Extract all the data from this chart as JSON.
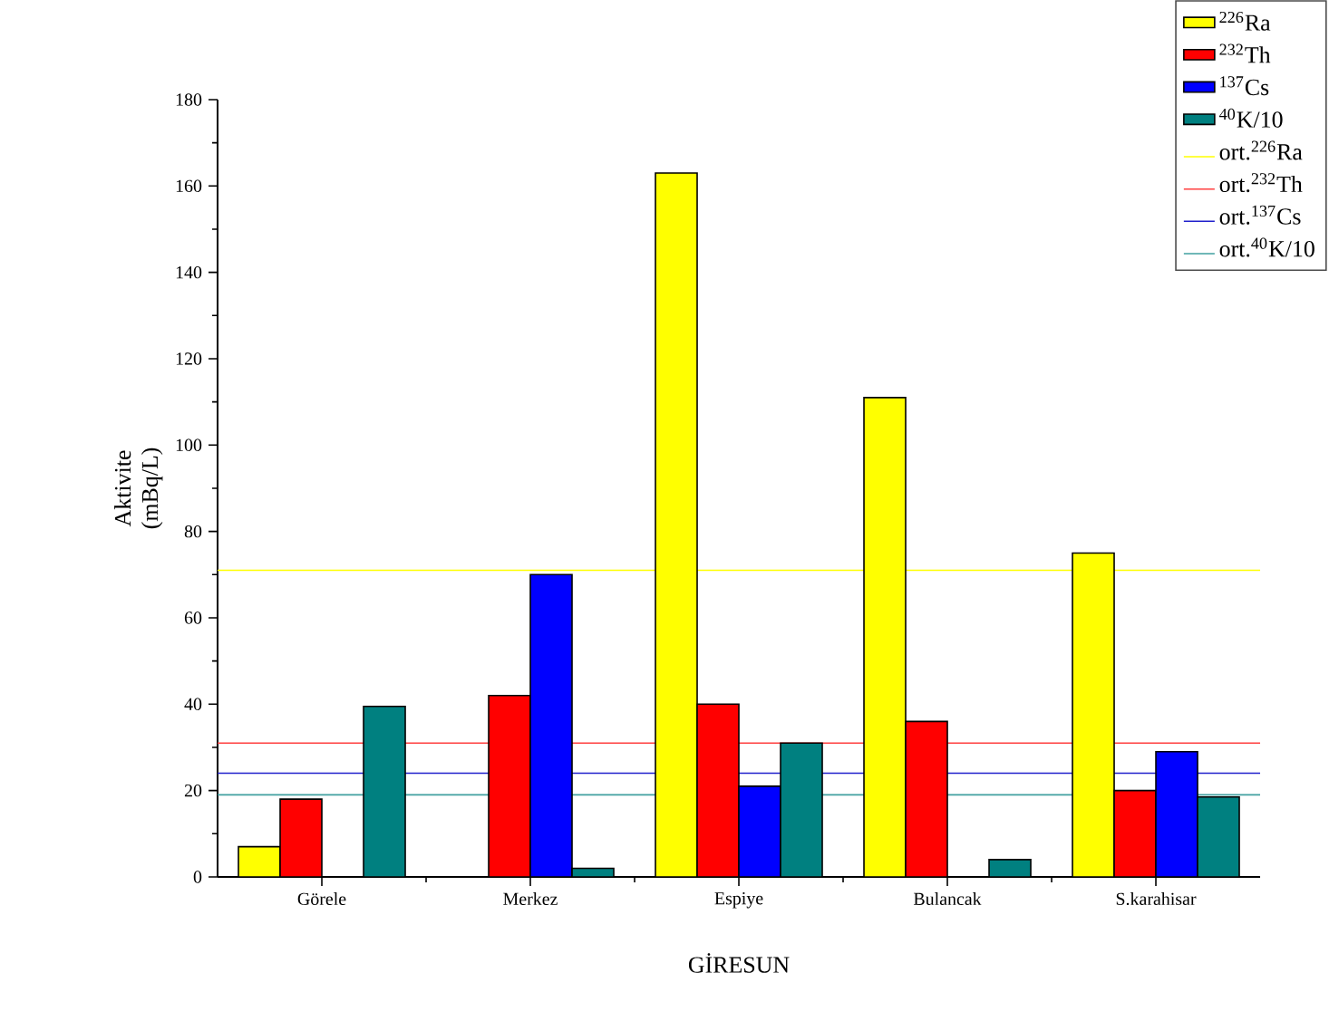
{
  "chart_data": {
    "type": "bar",
    "xlabel": "GİRESUN",
    "ylabel": "Aktivite (mBq/L)",
    "categories": [
      "Görele",
      "Merkez",
      "Espiye",
      "Bulancak",
      "S.karahisar"
    ],
    "series": [
      {
        "name": "$^{226}$Ra",
        "color": "#ffff00",
        "values": [
          7,
          null,
          163,
          111,
          75
        ]
      },
      {
        "name": "$^{232}$Th",
        "color": "#ff0000",
        "values": [
          18,
          42,
          40,
          36,
          20
        ]
      },
      {
        "name": "$^{137}$Cs",
        "color": "#0000ff",
        "values": [
          null,
          70,
          21,
          null,
          29
        ]
      },
      {
        "name": "$^{40}$K/10",
        "color": "#008080",
        "values": [
          39.5,
          2,
          31,
          4,
          18.5
        ]
      }
    ],
    "ref_lines": [
      {
        "axis": "y",
        "value": 71,
        "label": "ort.$^{226}$Ra",
        "color": "#ffff00"
      },
      {
        "axis": "y",
        "value": 31,
        "label": "ort.$^{232}$Th",
        "color": "#ff4040"
      },
      {
        "axis": "y",
        "value": 24,
        "label": "ort.$^{137}$Cs",
        "color": "#2020cc"
      },
      {
        "axis": "y",
        "value": 19,
        "label": "ort.$^{40}$K/10",
        "color": "#40a0a0"
      }
    ],
    "ylim": [
      0,
      180
    ],
    "yticks": [
      0,
      20,
      40,
      60,
      80,
      100,
      120,
      140,
      160,
      180
    ],
    "legend": "top right"
  }
}
